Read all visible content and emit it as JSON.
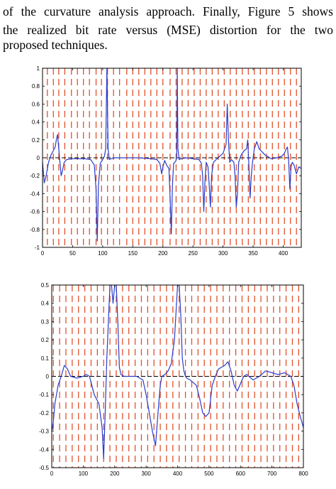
{
  "text": {
    "line1": "of the curvature analysis approach. Finally, Figure 5 shows",
    "line2": "the realized bit rate versus (MSE) distortion for the two",
    "line3": "proposed techniques."
  },
  "colors": {
    "signal": "#2a3ccc",
    "marker": "#e0502a",
    "axis": "#000000",
    "zero_line": "#000000"
  },
  "chart_data": [
    {
      "type": "line",
      "xlim": [
        0,
        430
      ],
      "ylim": [
        -1,
        1
      ],
      "xticks": [
        0,
        50,
        100,
        150,
        200,
        250,
        300,
        350,
        400
      ],
      "yticks": [
        -1,
        -0.8,
        -0.6,
        -0.4,
        -0.2,
        0,
        0.2,
        0.4,
        0.6,
        0.8,
        1
      ],
      "grid": false,
      "vertical_markers_x": [
        8,
        18,
        27,
        37,
        48,
        58,
        68,
        78,
        89,
        98,
        108,
        118,
        128,
        140,
        150,
        160,
        170,
        180,
        190,
        200,
        212,
        222,
        232,
        242,
        252,
        262,
        272,
        282,
        292,
        302,
        312,
        322,
        332,
        342,
        352,
        362,
        372,
        382,
        392,
        402,
        412,
        422
      ],
      "series": [
        {
          "x": [
            0,
            3,
            6,
            10,
            14,
            18,
            21,
            23,
            25,
            27,
            29,
            31,
            33,
            36,
            40,
            50,
            60,
            70,
            80,
            86,
            89,
            91,
            93,
            96,
            100,
            103,
            105,
            107,
            109,
            111,
            114,
            120,
            140,
            160,
            180,
            190,
            195,
            198,
            200,
            203,
            206,
            210,
            212,
            214,
            216,
            218,
            220,
            222,
            223,
            224,
            225,
            227,
            230,
            240,
            250,
            260,
            264,
            266,
            268,
            270,
            272,
            275,
            277,
            279,
            281,
            284,
            290,
            300,
            305,
            307,
            309,
            311,
            314,
            318,
            320,
            322,
            324,
            326,
            330,
            335,
            339,
            341,
            343,
            345,
            347,
            349,
            352,
            356,
            360,
            370,
            380,
            390,
            398,
            402,
            405,
            407,
            409,
            411,
            413,
            415,
            418,
            422,
            426,
            430
          ],
          "y": [
            -0.05,
            -0.28,
            -0.2,
            -0.05,
            0.03,
            0.08,
            0.12,
            0.2,
            0.26,
            0.1,
            -0.05,
            -0.2,
            -0.15,
            -0.05,
            -0.02,
            -0.01,
            -0.01,
            -0.01,
            -0.02,
            -0.08,
            -0.35,
            -0.93,
            -0.3,
            -0.06,
            -0.02,
            0.02,
            0.1,
            1.0,
            0.1,
            -0.02,
            -0.01,
            0,
            0,
            0,
            -0.01,
            -0.02,
            -0.06,
            -0.18,
            -0.1,
            -0.03,
            -0.08,
            -0.12,
            -0.45,
            -0.85,
            -0.3,
            -0.06,
            -0.05,
            -0.03,
            0.02,
            1.0,
            0.1,
            -0.02,
            -0.01,
            0,
            -0.01,
            -0.02,
            -0.06,
            -0.2,
            -0.6,
            -0.25,
            -0.05,
            -0.1,
            -0.3,
            -0.55,
            -0.2,
            -0.05,
            -0.01,
            0.05,
            0.15,
            0.6,
            0.2,
            -0.05,
            -0.02,
            -0.05,
            -0.2,
            -0.55,
            -0.4,
            -0.05,
            0.03,
            0.08,
            0.1,
            0.2,
            -0.1,
            -0.45,
            -0.2,
            -0.05,
            0.1,
            0.18,
            0.1,
            0.03,
            -0.01,
            0,
            0.02,
            0.05,
            0.1,
            0.12,
            -0.03,
            -0.35,
            -0.1,
            -0.05,
            -0.08,
            -0.18,
            -0.1,
            -0.12
          ]
        }
      ]
    },
    {
      "type": "line",
      "xlim": [
        0,
        800
      ],
      "ylim": [
        -0.5,
        0.5
      ],
      "xticks": [
        0,
        100,
        200,
        300,
        400,
        500,
        600,
        700,
        800
      ],
      "yticks": [
        -0.5,
        -0.4,
        -0.3,
        -0.2,
        -0.1,
        0,
        0.1,
        0.2,
        0.3,
        0.4,
        0.5
      ],
      "grid": false,
      "vertical_markers_x": [
        5,
        25,
        45,
        65,
        85,
        105,
        125,
        145,
        165,
        185,
        205,
        225,
        245,
        265,
        285,
        305,
        325,
        345,
        365,
        385,
        405,
        425,
        445,
        465,
        485,
        505,
        525,
        545,
        565,
        585,
        605,
        625,
        645,
        665,
        685,
        705,
        725,
        745,
        765,
        785
      ],
      "series": [
        {
          "x": [
            0,
            5,
            10,
            15,
            20,
            30,
            40,
            50,
            60,
            80,
            100,
            110,
            120,
            135,
            150,
            160,
            165,
            170,
            175,
            180,
            185,
            190,
            195,
            200,
            205,
            210,
            215,
            220,
            230,
            250,
            270,
            290,
            300,
            310,
            320,
            330,
            340,
            345,
            350,
            360,
            370,
            380,
            390,
            400,
            405,
            410,
            415,
            420,
            425,
            430,
            440,
            460,
            470,
            480,
            490,
            500,
            510,
            520,
            530,
            540,
            550,
            560,
            570,
            580,
            590,
            600,
            610,
            620,
            640,
            660,
            680,
            700,
            720,
            740,
            760,
            770,
            780,
            790,
            800
          ],
          "y": [
            -0.3,
            -0.25,
            -0.15,
            -0.1,
            -0.05,
            0,
            0.06,
            0.04,
            0,
            -0.01,
            0,
            0.01,
            0,
            -0.1,
            -0.15,
            -0.28,
            -0.45,
            -0.2,
            0.1,
            0.3,
            0.5,
            0.5,
            0.4,
            0.5,
            0.5,
            0.3,
            0.05,
            0.01,
            0,
            0,
            0,
            -0.02,
            -0.1,
            -0.2,
            -0.3,
            -0.38,
            -0.15,
            -0.05,
            0,
            0.01,
            0.03,
            0.07,
            0.2,
            0.5,
            0.5,
            0.35,
            0.1,
            0.03,
            0,
            -0.01,
            -0.02,
            -0.05,
            -0.12,
            -0.2,
            -0.22,
            -0.2,
            -0.05,
            0,
            0.04,
            0.05,
            0.06,
            0.08,
            0.03,
            -0.05,
            -0.08,
            -0.04,
            0,
            0.01,
            -0.02,
            0,
            0.03,
            0.02,
            0.01,
            0.02,
            0,
            -0.05,
            -0.15,
            -0.22,
            -0.28
          ]
        }
      ]
    }
  ]
}
